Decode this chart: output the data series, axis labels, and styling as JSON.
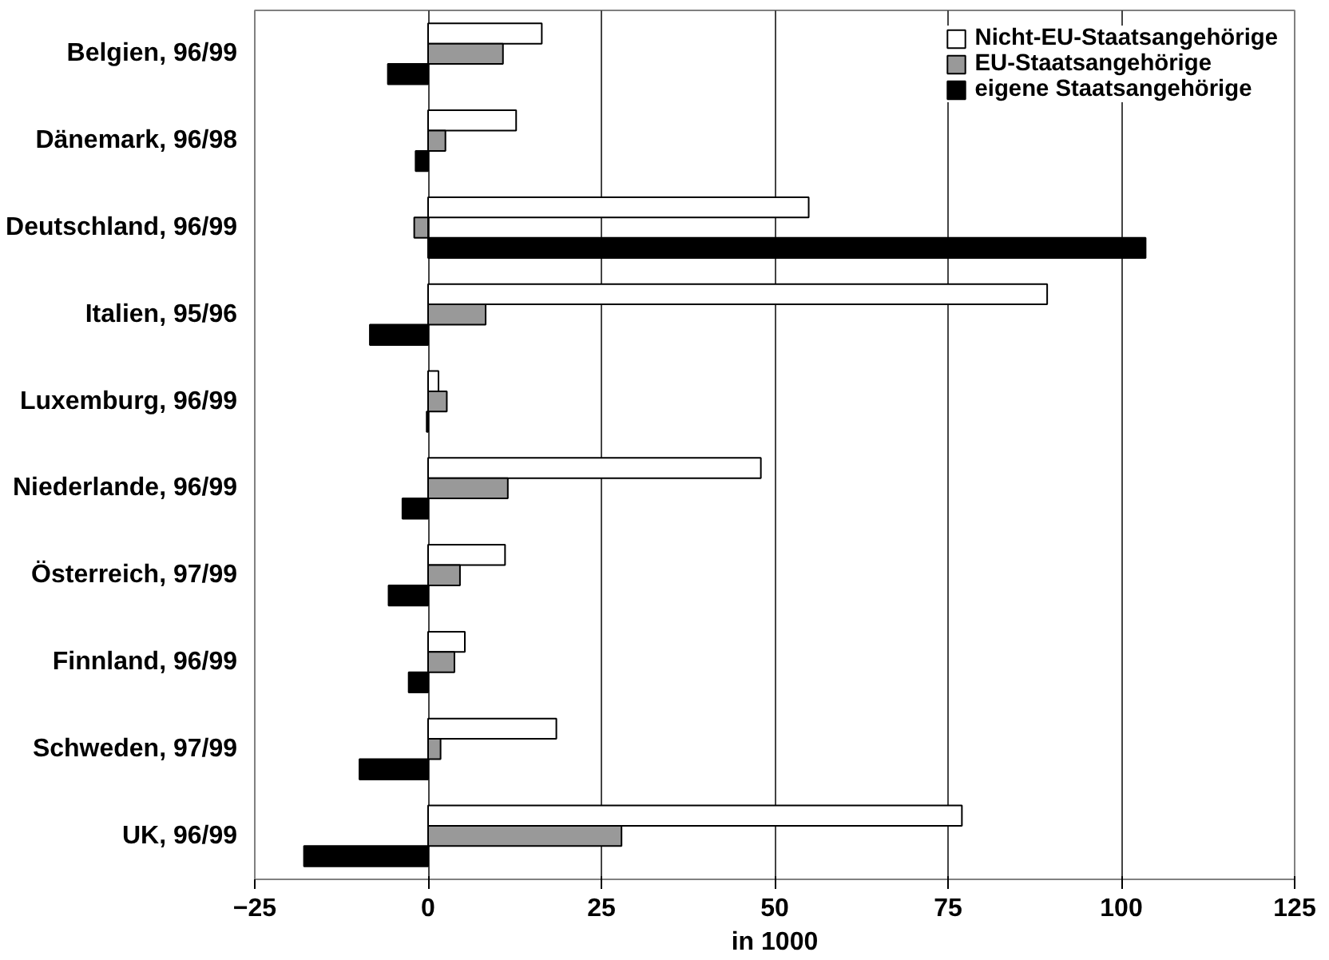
{
  "chart_data": {
    "type": "bar",
    "orientation": "horizontal",
    "xlabel": "in 1000",
    "categories": [
      "Belgien, 96/99",
      "Dänemark, 96/98",
      "Deutschland, 96/99",
      "Italien, 95/96",
      "Luxemburg, 96/99",
      "Niederlande, 96/99",
      "Österreich, 97/99",
      "Finnland, 96/99",
      "Schweden, 97/99",
      "UK, 96/99"
    ],
    "series": [
      {
        "name": "Nicht-EU-Staatsangehörige",
        "color": "#ffffff",
        "values": [
          16.4,
          12.7,
          54.9,
          89.3,
          1.5,
          48.0,
          11.1,
          5.3,
          18.5,
          77.0
        ]
      },
      {
        "name": "EU-Staatsangehörige",
        "color": "#999999",
        "values": [
          10.8,
          2.5,
          -2.0,
          8.3,
          2.7,
          11.5,
          4.6,
          3.8,
          1.8,
          27.9
        ]
      },
      {
        "name": "eigene Staatsangehörige",
        "color": "#000000",
        "values": [
          -5.8,
          -1.8,
          103.5,
          -8.4,
          -0.2,
          -3.7,
          -5.7,
          -2.8,
          -9.9,
          -17.9
        ]
      }
    ],
    "xlim": [
      -25,
      125
    ],
    "xticks": [
      -25,
      0,
      25,
      50,
      75,
      100,
      125
    ],
    "grid": "x",
    "legend": "top right"
  }
}
